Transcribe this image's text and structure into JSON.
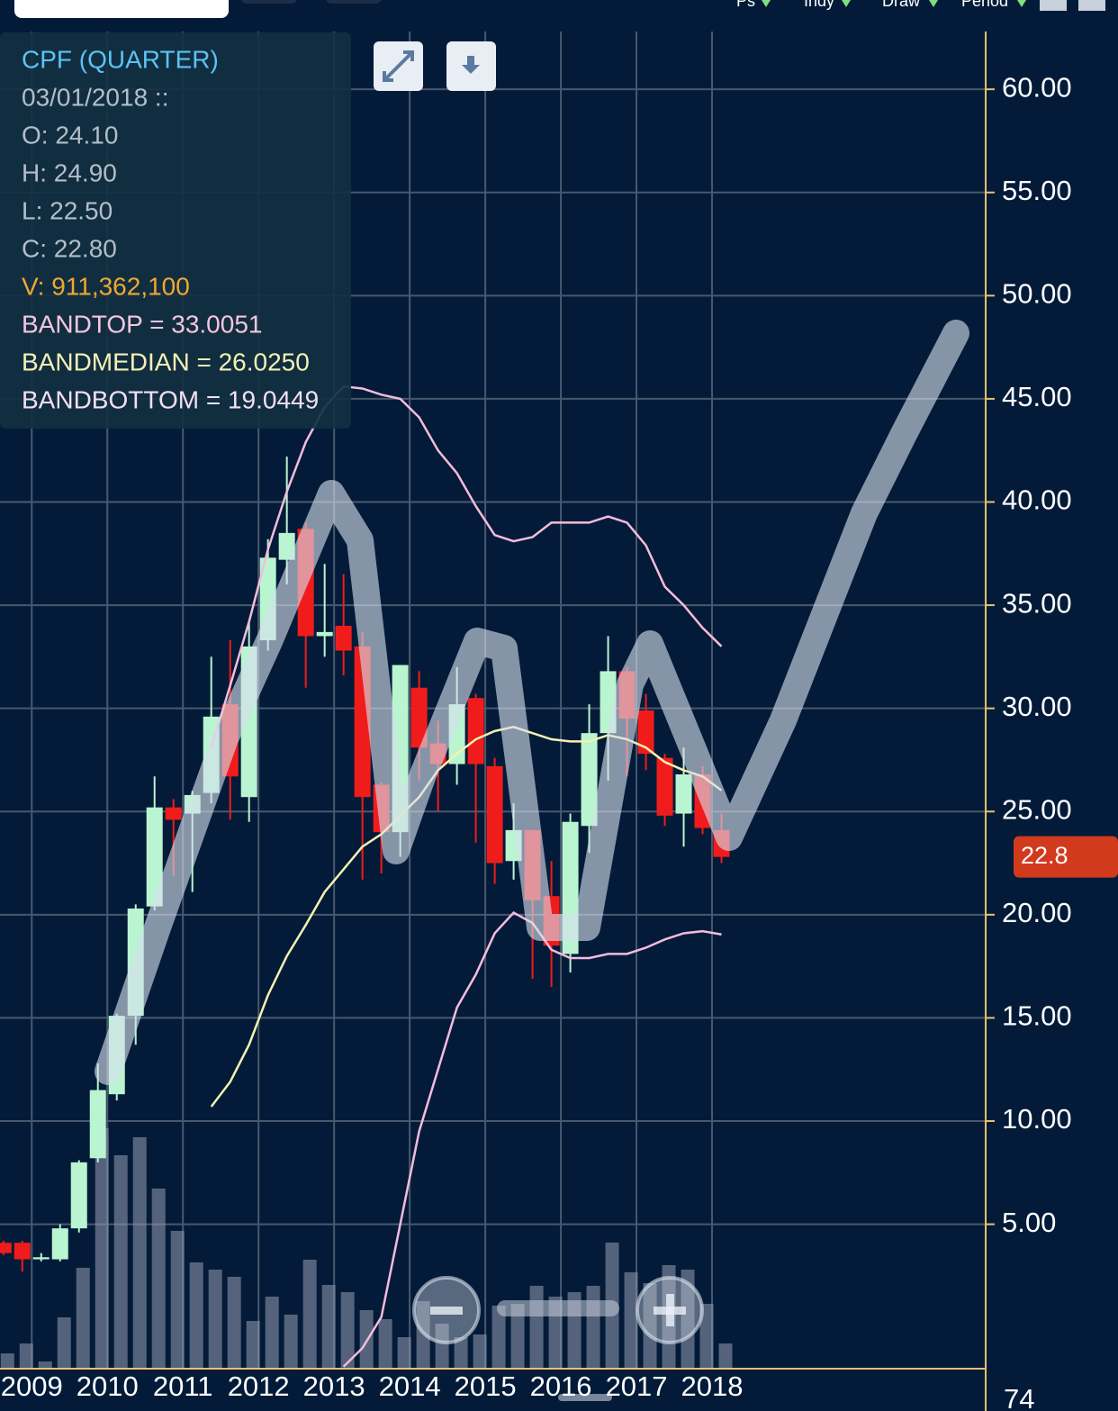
{
  "toolbar": [
    "Ps",
    "Indy",
    "Draw",
    "Period"
  ],
  "chart_data": {
    "type": "candlestick",
    "tooltip": [
      {
        "text": "CPF (QUARTER)",
        "color": "#5cc2f2"
      },
      {
        "text": "03/01/2018 ::",
        "color": "#b4bec8"
      },
      {
        "text": "O: 24.10",
        "color": "#b4bec8"
      },
      {
        "text": "H: 24.90",
        "color": "#b4bec8"
      },
      {
        "text": "L: 22.50",
        "color": "#b4bec8"
      },
      {
        "text": "C: 22.80",
        "color": "#b4bec8"
      },
      {
        "text": "V: 911,362,100",
        "color": "#f0a830"
      },
      {
        "text": "BANDTOP = 33.0051",
        "color": "#f6c4df"
      },
      {
        "text": "BANDMEDIAN = 26.0250",
        "color": "#f3f0b4"
      },
      {
        "text": "BANDBOTTOM = 19.0449",
        "color": "#f3dff0"
      }
    ],
    "last_label": "22.8",
    "corner_label": "74",
    "x": [
      2008.625,
      2008.875,
      2009.125,
      2009.375,
      2009.625,
      2009.875,
      2010.125,
      2010.375,
      2010.625,
      2010.875,
      2011.125,
      2011.375,
      2011.625,
      2011.875,
      2012.125,
      2012.375,
      2012.625,
      2012.875,
      2013.125,
      2013.375,
      2013.625,
      2013.875,
      2014.125,
      2014.375,
      2014.625,
      2014.875,
      2015.125,
      2015.375,
      2015.625,
      2015.875,
      2016.125,
      2016.375,
      2016.625,
      2016.875,
      2017.125,
      2017.375,
      2017.625,
      2017.875,
      2018.125
    ],
    "open": [
      4.1,
      4.1,
      3.3,
      3.3,
      4.8,
      8.2,
      11.3,
      15.1,
      20.4,
      25.2,
      24.9,
      25.9,
      30.2,
      25.7,
      33.3,
      37.2,
      38.7,
      33.5,
      34.0,
      33.0,
      26.3,
      24.0,
      31.0,
      28.3,
      27.3,
      30.5,
      27.2,
      22.6,
      24.1,
      20.9,
      18.1,
      24.3,
      28.8,
      31.8,
      29.9,
      27.6,
      24.9,
      26.8,
      24.1
    ],
    "high": [
      4.2,
      4.2,
      3.6,
      5.0,
      8.1,
      12.8,
      15.2,
      20.5,
      26.7,
      25.6,
      26.0,
      32.5,
      33.3,
      34.2,
      38.2,
      42.2,
      39.0,
      37.0,
      36.5,
      33.7,
      26.4,
      32.1,
      31.8,
      29.4,
      32.0,
      30.7,
      27.6,
      25.4,
      24.1,
      22.6,
      24.9,
      30.2,
      33.5,
      32.0,
      30.7,
      27.8,
      28.1,
      27.2,
      24.9
    ],
    "low": [
      3.5,
      2.7,
      3.2,
      3.2,
      4.6,
      8.0,
      11.0,
      13.7,
      20.2,
      21.9,
      21.1,
      25.4,
      24.6,
      24.5,
      32.8,
      36.0,
      31.0,
      32.5,
      31.6,
      21.7,
      22.0,
      22.8,
      26.5,
      25.0,
      26.3,
      23.5,
      21.5,
      21.7,
      16.9,
      16.5,
      17.2,
      23.0,
      26.5,
      26.7,
      27.0,
      24.3,
      23.3,
      23.9,
      22.5
    ],
    "close": [
      3.6,
      3.3,
      3.4,
      4.8,
      8.0,
      11.5,
      15.1,
      20.3,
      25.2,
      24.6,
      25.8,
      29.6,
      26.7,
      33.0,
      37.3,
      38.5,
      33.5,
      33.7,
      32.8,
      25.7,
      24.0,
      32.1,
      28.1,
      27.3,
      30.2,
      27.3,
      22.5,
      24.1,
      20.7,
      18.5,
      24.5,
      28.8,
      31.8,
      29.5,
      27.8,
      24.8,
      26.8,
      24.2,
      22.8
    ],
    "volume": [
      552500000,
      910000000,
      260000000,
      1852500000,
      3640000000,
      8677500000,
      7702500000,
      8352500000,
      6500000000,
      4972500000,
      3835000000,
      3575000000,
      3315000000,
      1722500000,
      2600000000,
      1950000000,
      3932500000,
      3022500000,
      2762500000,
      2112500000,
      1787500000,
      1137500000,
      2437500000,
      1625000000,
      1137500000,
      1235000000,
      2275000000,
      2340000000,
      2990000000,
      2600000000,
      2762500000,
      2990000000,
      4550000000,
      3477500000,
      3087500000,
      3737500000,
      3575000000,
      2340000000,
      911362100
    ],
    "vlim": [
      0,
      9000000000
    ],
    "up_color": "#b9f5d0",
    "down_color": "#f01c1c",
    "volume_color": "#8a94a8",
    "bands": [
      {
        "color": "#f4bcdc",
        "values": [
          null,
          null,
          null,
          null,
          null,
          null,
          null,
          null,
          null,
          null,
          null,
          28.1,
          31.1,
          34.2,
          37.7,
          40.5,
          42.9,
          44.6,
          45.6,
          45.5,
          45.2,
          45.0,
          44.1,
          42.5,
          41.4,
          39.8,
          38.4,
          38.1,
          38.3,
          39.0,
          39.0,
          39.0,
          39.3,
          39.0,
          37.9,
          35.9,
          35.0,
          33.9,
          33.0051
        ]
      },
      {
        "color": "#f4f1b2",
        "values": [
          null,
          null,
          null,
          null,
          null,
          null,
          null,
          null,
          null,
          null,
          null,
          10.7,
          11.9,
          13.7,
          16.1,
          18.0,
          19.5,
          21.1,
          22.2,
          23.3,
          23.9,
          24.8,
          25.7,
          27.0,
          27.8,
          28.5,
          28.9,
          29.1,
          28.8,
          28.5,
          28.4,
          28.4,
          28.7,
          28.5,
          28.1,
          27.4,
          27.0,
          26.7,
          26.025
        ]
      },
      {
        "color": "#f4bcdc",
        "values": [
          null,
          null,
          null,
          null,
          null,
          null,
          null,
          null,
          null,
          null,
          null,
          null,
          null,
          null,
          null,
          null,
          null,
          null,
          -1.9,
          -1.0,
          0.5,
          5.0,
          9.5,
          12.5,
          15.5,
          17.1,
          19.1,
          20.1,
          19.6,
          18.3,
          17.9,
          17.9,
          18.1,
          18.1,
          18.4,
          18.8,
          19.1,
          19.2,
          19.0449
        ]
      }
    ],
    "xlim": [
      2008.58,
      2021.62
    ],
    "xticks": [
      2009,
      2010,
      2011,
      2012,
      2013,
      2014,
      2015,
      2016,
      2017,
      2018
    ],
    "ylim": [
      -2,
      62.8
    ],
    "yticks": [
      {
        "value": 5,
        "label": "5.00"
      },
      {
        "value": 10,
        "label": "10.00"
      },
      {
        "value": 15,
        "label": "15.00"
      },
      {
        "value": 20,
        "label": "20.00"
      },
      {
        "value": 25,
        "label": "25.00"
      },
      {
        "value": 30,
        "label": "30.00"
      },
      {
        "value": 35,
        "label": "35.00"
      },
      {
        "value": 40,
        "label": "40.00"
      },
      {
        "value": 45,
        "label": "45.00"
      },
      {
        "value": 50,
        "label": "50.00"
      },
      {
        "value": 55,
        "label": "55.00"
      },
      {
        "value": 60,
        "label": "60.00"
      }
    ],
    "grid": true
  }
}
